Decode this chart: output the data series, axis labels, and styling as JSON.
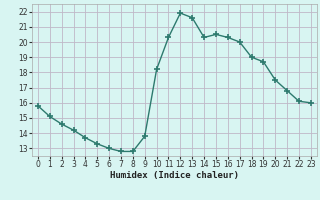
{
  "x": [
    0,
    1,
    2,
    3,
    4,
    5,
    6,
    7,
    8,
    9,
    10,
    11,
    12,
    13,
    14,
    15,
    16,
    17,
    18,
    19,
    20,
    21,
    22,
    23
  ],
  "y": [
    15.8,
    15.1,
    14.6,
    14.2,
    13.7,
    13.3,
    13.0,
    12.8,
    12.8,
    13.8,
    18.2,
    20.3,
    21.9,
    21.6,
    20.3,
    20.5,
    20.3,
    20.0,
    19.0,
    18.7,
    17.5,
    16.8,
    16.1,
    16.0
  ],
  "line_color": "#2d7a6e",
  "marker": "+",
  "marker_size": 4,
  "marker_ew": 1.2,
  "bg_color": "#d8f5f2",
  "grid_color": "#c0b8c8",
  "xlabel": "Humidex (Indice chaleur)",
  "ylim": [
    12.5,
    22.5
  ],
  "xlim": [
    -0.5,
    23.5
  ],
  "yticks": [
    13,
    14,
    15,
    16,
    17,
    18,
    19,
    20,
    21,
    22
  ],
  "xticks": [
    0,
    1,
    2,
    3,
    4,
    5,
    6,
    7,
    8,
    9,
    10,
    11,
    12,
    13,
    14,
    15,
    16,
    17,
    18,
    19,
    20,
    21,
    22,
    23
  ],
  "xlabel_fontsize": 6.5,
  "tick_fontsize": 5.5,
  "linewidth": 1.0
}
